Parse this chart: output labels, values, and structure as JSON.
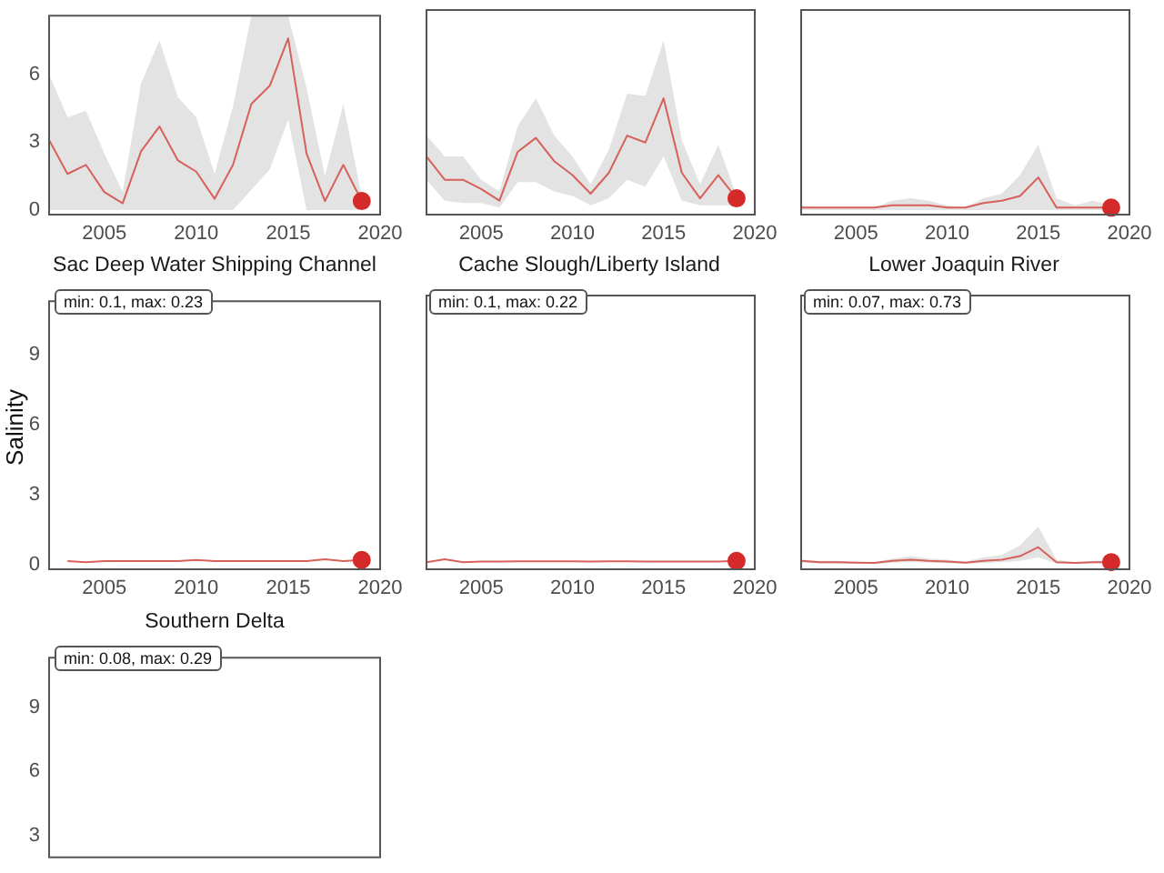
{
  "chart_data": [
    {
      "type": "line",
      "x": [
        2002,
        2003,
        2004,
        2005,
        2006,
        2007,
        2008,
        2009,
        2010,
        2011,
        2012,
        2013,
        2014,
        2015,
        2016,
        2017,
        2018,
        2019
      ],
      "xlim": [
        2002,
        2020
      ],
      "xticks": [
        2005,
        2010,
        2015,
        2020
      ],
      "ylim": [
        -0.2,
        8.6
      ],
      "yticks": [
        0,
        3,
        6
      ],
      "series": [
        {
          "color": "#d6605a",
          "values": [
            3.1,
            1.6,
            2.0,
            0.8,
            0.3,
            2.6,
            3.7,
            2.2,
            1.7,
            0.5,
            2.0,
            4.7,
            5.5,
            7.6,
            2.5,
            0.4,
            2.0,
            0.4
          ],
          "upper": [
            6.0,
            4.1,
            4.4,
            2.5,
            0.8,
            5.6,
            7.5,
            5.0,
            4.1,
            1.6,
            4.6,
            8.6,
            8.6,
            8.6,
            5.4,
            1.5,
            4.7,
            0.6
          ],
          "lower": [
            0,
            0,
            0,
            0,
            0,
            0,
            0,
            0,
            0,
            0,
            0,
            0.9,
            1.8,
            4.0,
            0,
            0,
            0,
            0
          ]
        },
        {
          "type": "scatter",
          "values": [
            null,
            null,
            null,
            null,
            null,
            null,
            null,
            null,
            null,
            null,
            null,
            null,
            null,
            null,
            null,
            null,
            null,
            0.4
          ],
          "color": "#d42a2a",
          "marker": "circle"
        }
      ]
    },
    {
      "type": "line",
      "x": [
        2002,
        2003,
        2004,
        2005,
        2006,
        2007,
        2008,
        2009,
        2010,
        2011,
        2012,
        2013,
        2014,
        2015,
        2016,
        2017,
        2018,
        2019
      ],
      "xlim": [
        2002,
        2020
      ],
      "xticks": [
        2005,
        2010,
        2015,
        2020
      ],
      "ylim": [
        -0.2,
        8.6
      ],
      "yticks": [
        0,
        3,
        6
      ],
      "tick_labels": "x",
      "series": [
        {
          "color": "#d6605a",
          "values": [
            2.3,
            1.3,
            1.3,
            0.9,
            0.4,
            2.5,
            3.1,
            2.1,
            1.5,
            0.7,
            1.6,
            3.2,
            2.9,
            4.8,
            1.6,
            0.5,
            1.5,
            0.5
          ],
          "upper": [
            3.2,
            2.3,
            2.3,
            1.3,
            0.8,
            3.6,
            4.8,
            3.2,
            2.3,
            1.1,
            2.6,
            5.0,
            4.9,
            7.3,
            3.0,
            1.1,
            2.8,
            0.6
          ],
          "lower": [
            1.3,
            0.4,
            0.3,
            0.3,
            0.1,
            1.2,
            1.2,
            0.8,
            0.6,
            0.2,
            0.5,
            1.3,
            1.0,
            2.3,
            0.4,
            0.2,
            0.2,
            0.2
          ]
        },
        {
          "type": "scatter",
          "values": [
            null,
            null,
            null,
            null,
            null,
            null,
            null,
            null,
            null,
            null,
            null,
            null,
            null,
            null,
            null,
            null,
            null,
            0.5
          ],
          "color": "#d42a2a",
          "marker": "circle"
        }
      ]
    },
    {
      "type": "line",
      "x": [
        2002,
        2003,
        2004,
        2005,
        2006,
        2007,
        2008,
        2009,
        2010,
        2011,
        2012,
        2013,
        2014,
        2015,
        2016,
        2017,
        2018,
        2019
      ],
      "xlim": [
        2002,
        2020
      ],
      "xticks": [
        2005,
        2010,
        2015,
        2020
      ],
      "ylim": [
        -0.2,
        8.6
      ],
      "yticks": [
        0,
        3,
        6
      ],
      "tick_labels": "x",
      "series": [
        {
          "color": "#d6605a",
          "values": [
            0.1,
            0.1,
            0.1,
            0.1,
            0.1,
            0.2,
            0.2,
            0.2,
            0.1,
            0.1,
            0.3,
            0.4,
            0.6,
            1.4,
            0.1,
            0.1,
            0.1,
            0.1
          ],
          "upper": [
            0.2,
            0.1,
            0.1,
            0.1,
            0.1,
            0.4,
            0.5,
            0.4,
            0.2,
            0.1,
            0.5,
            0.7,
            1.5,
            2.8,
            0.5,
            0.2,
            0.4,
            0.2
          ],
          "lower": [
            0,
            0,
            0,
            0,
            0,
            0,
            0,
            0,
            0,
            0,
            0,
            0,
            0,
            0,
            0,
            0,
            0,
            0
          ]
        },
        {
          "type": "scatter",
          "values": [
            null,
            null,
            null,
            null,
            null,
            null,
            null,
            null,
            null,
            null,
            null,
            null,
            null,
            null,
            null,
            null,
            null,
            0.1
          ],
          "color": "#d42a2a",
          "marker": "circle"
        }
      ]
    },
    {
      "type": "line",
      "title": "Sac Deep Water Shipping Channel",
      "ylabel": "Salinity",
      "annotations": [
        "min: 0.1, max: 0.23"
      ],
      "x": [
        2003,
        2004,
        2005,
        2006,
        2007,
        2008,
        2009,
        2010,
        2011,
        2012,
        2013,
        2014,
        2015,
        2016,
        2017,
        2018,
        2019
      ],
      "xlim": [
        2002,
        2020
      ],
      "xticks": [
        2005,
        2010,
        2015,
        2020
      ],
      "ylim": [
        -0.2,
        11.3
      ],
      "yticks": [
        0,
        3,
        6,
        9
      ],
      "series": [
        {
          "color": "#d6605a",
          "values": [
            0.15,
            0.1,
            0.15,
            0.15,
            0.15,
            0.15,
            0.15,
            0.2,
            0.15,
            0.15,
            0.15,
            0.15,
            0.15,
            0.15,
            0.23,
            0.15,
            0.2
          ]
        },
        {
          "type": "scatter",
          "values": [
            null,
            null,
            null,
            null,
            null,
            null,
            null,
            null,
            null,
            null,
            null,
            null,
            null,
            null,
            null,
            null,
            0.2
          ],
          "color": "#d42a2a",
          "marker": "circle"
        }
      ]
    },
    {
      "type": "line",
      "title": "Cache Slough/Liberty Island",
      "annotations": [
        "min: 0.1, max: 0.22"
      ],
      "x": [
        2002,
        2003,
        2004,
        2005,
        2006,
        2007,
        2008,
        2009,
        2010,
        2011,
        2012,
        2013,
        2014,
        2015,
        2016,
        2017,
        2018,
        2019
      ],
      "xlim": [
        2002,
        2020
      ],
      "xticks": [
        2005,
        2010,
        2015,
        2020
      ],
      "ylim": [
        -0.2,
        11.3
      ],
      "yticks": [
        0,
        3,
        6,
        9
      ],
      "tick_labels": "x",
      "series": [
        {
          "color": "#d6605a",
          "values": [
            0.1,
            0.22,
            0.1,
            0.12,
            0.12,
            0.13,
            0.13,
            0.13,
            0.13,
            0.12,
            0.13,
            0.13,
            0.12,
            0.12,
            0.12,
            0.12,
            0.12,
            0.15
          ]
        },
        {
          "type": "scatter",
          "values": [
            null,
            null,
            null,
            null,
            null,
            null,
            null,
            null,
            null,
            null,
            null,
            null,
            null,
            null,
            null,
            null,
            null,
            0.15
          ],
          "color": "#d42a2a",
          "marker": "circle"
        }
      ]
    },
    {
      "type": "line",
      "title": "Lower Joaquin River",
      "annotations": [
        "min: 0.07, max: 0.73"
      ],
      "x": [
        2002,
        2003,
        2004,
        2005,
        2006,
        2007,
        2008,
        2009,
        2010,
        2011,
        2012,
        2013,
        2014,
        2015,
        2016,
        2017,
        2018,
        2019
      ],
      "xlim": [
        2002,
        2020
      ],
      "xticks": [
        2005,
        2010,
        2015,
        2020
      ],
      "ylim": [
        -0.2,
        11.3
      ],
      "yticks": [
        0,
        3,
        6,
        9
      ],
      "tick_labels": "x",
      "series": [
        {
          "color": "#d6605a",
          "values": [
            0.15,
            0.1,
            0.1,
            0.08,
            0.07,
            0.15,
            0.2,
            0.15,
            0.12,
            0.08,
            0.15,
            0.2,
            0.35,
            0.73,
            0.1,
            0.07,
            0.1,
            0.1
          ],
          "upper": [
            0.2,
            0.15,
            0.15,
            0.12,
            0.1,
            0.25,
            0.35,
            0.25,
            0.2,
            0.12,
            0.3,
            0.4,
            0.8,
            1.6,
            0.2,
            0.1,
            0.15,
            0.2
          ],
          "lower": [
            0.1,
            0.05,
            0.05,
            0.04,
            0.03,
            0.08,
            0.1,
            0.08,
            0.06,
            0.04,
            0.07,
            0.1,
            0.15,
            0.3,
            0.05,
            0.03,
            0.05,
            0.05
          ]
        },
        {
          "type": "scatter",
          "values": [
            null,
            null,
            null,
            null,
            null,
            null,
            null,
            null,
            null,
            null,
            null,
            null,
            null,
            null,
            null,
            null,
            null,
            0.1
          ],
          "color": "#d42a2a",
          "marker": "circle"
        }
      ]
    },
    {
      "type": "line",
      "title": "Southern Delta",
      "annotations": [
        "min: 0.08, max: 0.29"
      ],
      "xlim": [
        2002,
        2020
      ],
      "ylim": [
        2,
        11.3
      ],
      "yticks": [
        3,
        6,
        9
      ],
      "tick_labels": "y"
    }
  ]
}
